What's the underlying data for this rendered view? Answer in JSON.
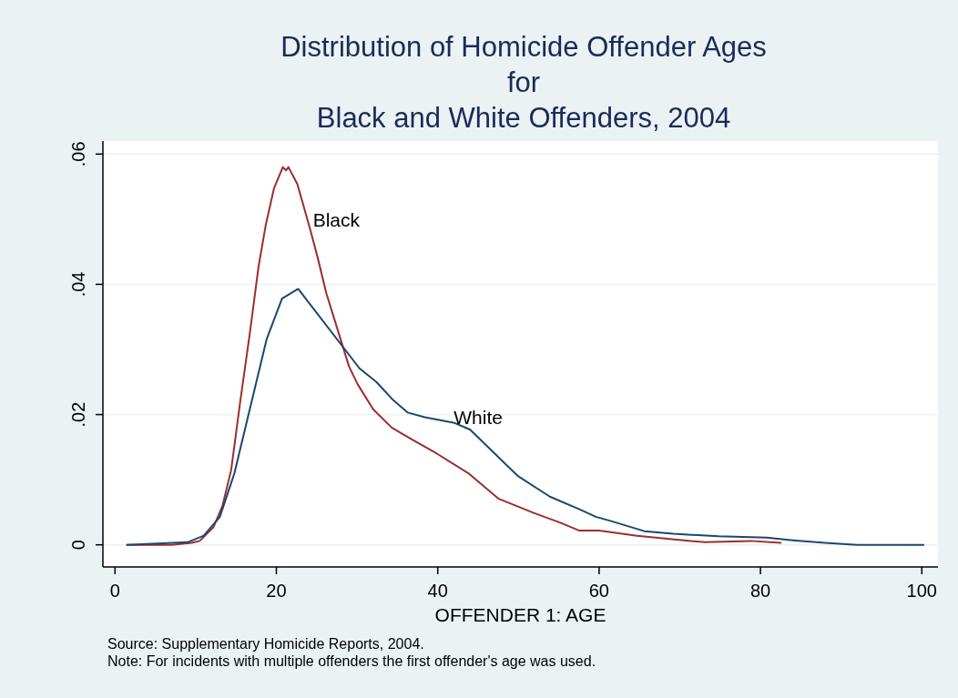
{
  "chart_data": {
    "type": "line",
    "title": "Distribution of Homicide Offender Ages\nfor\nBlack and White Offenders, 2004",
    "xlabel": "OFFENDER 1: AGE",
    "xlim": [
      -1.5,
      102
    ],
    "xticks": [
      0,
      20,
      40,
      60,
      80,
      100
    ],
    "ylim": [
      -0.0034,
      0.062
    ],
    "yticks": [
      {
        "value": 0,
        "label": "0"
      },
      {
        "value": 0.02,
        "label": ".02"
      },
      {
        "value": 0.04,
        "label": ".04"
      },
      {
        "value": 0.06,
        "label": ".06"
      }
    ],
    "grid": "y",
    "annotations": [
      "Source: Supplementary Homicide Reports, 2004.",
      "Note: For incidents with multiple offenders the first offender's age was used."
    ],
    "series": [
      {
        "name": "Black",
        "color": "#9b2d30",
        "x": [
          1.5,
          7,
          9.5,
          10.5,
          12.2,
          13.3,
          14.4,
          15.5,
          16.7,
          17.8,
          18.7,
          19.7,
          20.8,
          21.2,
          21.5,
          22.6,
          24.2,
          25.1,
          26.2,
          27.5,
          29,
          30.1,
          32,
          34.3,
          36.5,
          39.9,
          43.9,
          47.5,
          51.9,
          55.2,
          57.5,
          60,
          64.7,
          69.6,
          73.1,
          78.8,
          82.5
        ],
        "values": [
          0,
          0,
          0.0003,
          0.0006,
          0.0027,
          0.0059,
          0.0115,
          0.0218,
          0.0324,
          0.0428,
          0.0492,
          0.0547,
          0.058,
          0.0575,
          0.058,
          0.0554,
          0.0484,
          0.0442,
          0.0386,
          0.0334,
          0.0274,
          0.0246,
          0.0208,
          0.018,
          0.0164,
          0.014,
          0.0109,
          0.0071,
          0.0049,
          0.0034,
          0.0022,
          0.0022,
          0.0014,
          0.0008,
          0.0004,
          0.0006,
          0.0003
        ]
      },
      {
        "name": "White",
        "color": "#1a476f",
        "x": [
          1.5,
          9,
          11,
          13,
          14.8,
          18.8,
          20.7,
          22.7,
          30.3,
          32.4,
          34.5,
          36.3,
          38.4,
          42.1,
          44,
          49.9,
          53.9,
          57.5,
          59.6,
          61.6,
          65.6,
          69.2,
          74.8,
          80.8,
          84,
          88,
          92,
          100.2
        ],
        "values": [
          0,
          0.0004,
          0.0014,
          0.0043,
          0.011,
          0.0316,
          0.0378,
          0.0393,
          0.0271,
          0.025,
          0.0222,
          0.0203,
          0.0196,
          0.0187,
          0.0177,
          0.0106,
          0.0074,
          0.0055,
          0.0043,
          0.0036,
          0.0021,
          0.0017,
          0.0013,
          0.0011,
          0.0007,
          0.0003,
          0,
          0
        ]
      }
    ]
  }
}
